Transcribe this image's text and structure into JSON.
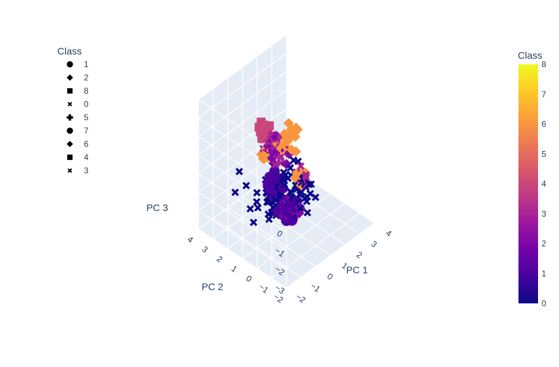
{
  "chart_data": {
    "type": "scatter",
    "dimensions": 3,
    "axes": {
      "x": {
        "title": "PC 1",
        "ticks": [
          "−2",
          "−1",
          "0",
          "1",
          "2",
          "3",
          "4"
        ],
        "range": [
          -2,
          4
        ]
      },
      "y": {
        "title": "PC 2",
        "ticks": [
          "−2",
          "−1",
          "0",
          "1",
          "2",
          "3",
          "4"
        ],
        "range": [
          -2,
          4
        ]
      },
      "z": {
        "title": "PC 3",
        "ticks": [
          "−3",
          "−2",
          "−1",
          "0",
          "1",
          "2",
          "3",
          "4"
        ],
        "range": [
          -3,
          4
        ]
      }
    },
    "legend": {
      "title": "Class",
      "placement": "top-left",
      "items": [
        {
          "label": "1",
          "symbol": "circle"
        },
        {
          "label": "2",
          "symbol": "diamond"
        },
        {
          "label": "8",
          "symbol": "square"
        },
        {
          "label": "0",
          "symbol": "x"
        },
        {
          "label": "5",
          "symbol": "cross"
        },
        {
          "label": "7",
          "symbol": "circle"
        },
        {
          "label": "6",
          "symbol": "diamond"
        },
        {
          "label": "4",
          "symbol": "square"
        },
        {
          "label": "3",
          "symbol": "x"
        }
      ]
    },
    "colorbar": {
      "title": "Class",
      "range": [
        0,
        8
      ],
      "ticks": [
        "0",
        "1",
        "2",
        "3",
        "4",
        "5",
        "6",
        "7",
        "8"
      ],
      "colorscale": [
        "#0d0887",
        "#46039f",
        "#7201a8",
        "#9c179e",
        "#bd3786",
        "#d8576b",
        "#ed7953",
        "#fb9f3a",
        "#fdca26",
        "#f0f921"
      ]
    },
    "clusters": [
      {
        "class": 0,
        "symbol": "x",
        "center": [
          0.5,
          0.6,
          -0.8
        ],
        "spread": [
          1.6,
          1.5,
          1.0
        ],
        "count": 95
      },
      {
        "class": 1,
        "symbol": "circle",
        "center": [
          -1.2,
          -1.4,
          0.4
        ],
        "spread": [
          0.5,
          0.6,
          0.6
        ],
        "count": 24
      },
      {
        "class": 1,
        "symbol": "circle",
        "center": [
          -0.5,
          0.2,
          0.6
        ],
        "spread": [
          0.6,
          0.6,
          0.7
        ],
        "count": 20
      },
      {
        "class": 2,
        "symbol": "diamond",
        "center": [
          -1.4,
          -1.6,
          0.6
        ],
        "spread": [
          0.6,
          0.5,
          0.5
        ],
        "count": 20
      },
      {
        "class": 2,
        "symbol": "diamond",
        "center": [
          0.6,
          1.4,
          1.2
        ],
        "spread": [
          0.6,
          0.6,
          0.7
        ],
        "count": 18
      },
      {
        "class": 3,
        "symbol": "x",
        "center": [
          -0.3,
          0.6,
          2.4
        ],
        "spread": [
          0.7,
          0.6,
          0.8
        ],
        "count": 30
      },
      {
        "class": 3,
        "symbol": "x",
        "center": [
          0.0,
          -1.0,
          1.4
        ],
        "spread": [
          0.5,
          0.5,
          0.6
        ],
        "count": 12
      },
      {
        "class": 4,
        "symbol": "square",
        "center": [
          -0.6,
          0.9,
          3.2
        ],
        "spread": [
          0.3,
          0.3,
          0.5
        ],
        "count": 16
      },
      {
        "class": 6,
        "symbol": "diamond",
        "center": [
          2.3,
          2.1,
          0.3
        ],
        "spread": [
          0.5,
          0.4,
          0.8
        ],
        "count": 22
      },
      {
        "class": 6,
        "symbol": "diamond",
        "center": [
          0.9,
          2.2,
          0.4
        ],
        "spread": [
          0.3,
          0.3,
          0.4
        ],
        "count": 12
      },
      {
        "class": 6,
        "symbol": "diamond",
        "center": [
          1.3,
          0.5,
          -0.2
        ],
        "spread": [
          0.3,
          0.3,
          0.4
        ],
        "count": 12
      }
    ]
  }
}
